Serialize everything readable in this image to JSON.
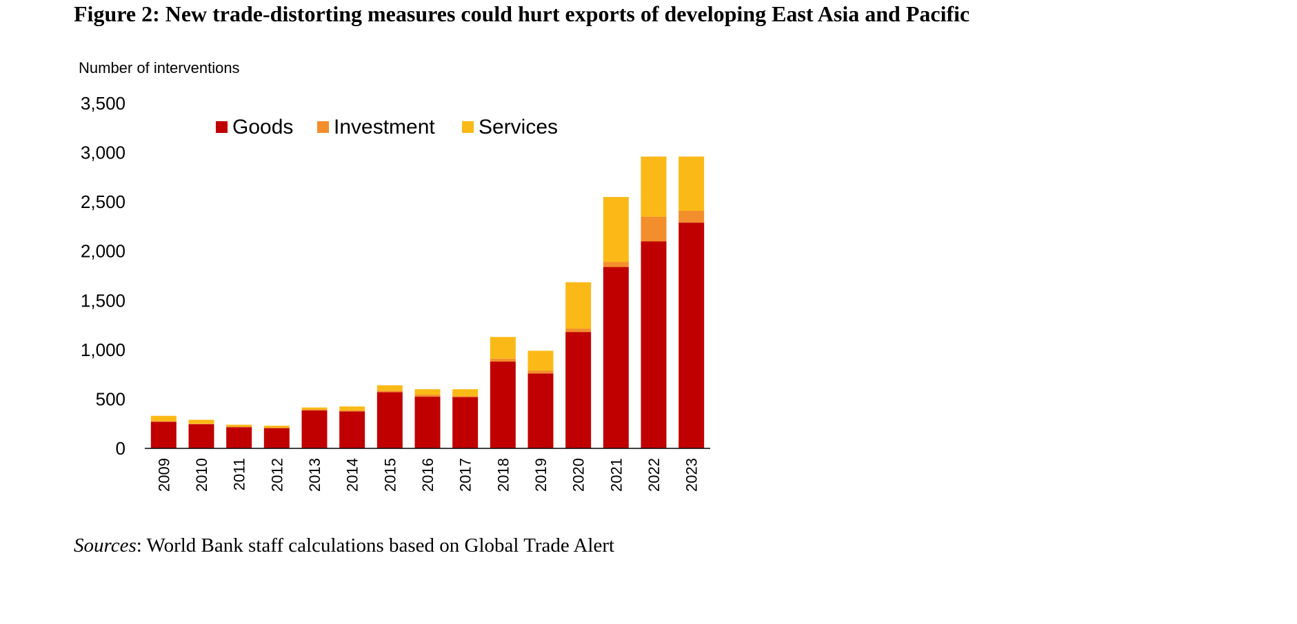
{
  "title": "Figure 2: New trade-distorting measures could hurt exports of developing East Asia and Pacific",
  "sources": {
    "label": "Sources",
    "text": ": World Bank staff calculations based on Global Trade Alert"
  },
  "chart_data": {
    "type": "bar",
    "stacked": true,
    "title": "",
    "xlabel": "",
    "ylabel": "Number of interventions",
    "ylim": [
      0,
      3500
    ],
    "yticks": [
      0,
      500,
      1000,
      1500,
      2000,
      2500,
      3000,
      3500
    ],
    "ytick_labels": [
      "0",
      "500",
      "1,000",
      "1,500",
      "2,000",
      "2,500",
      "3,000",
      "3,500"
    ],
    "categories": [
      "2009",
      "2010",
      "2011",
      "2012",
      "2013",
      "2014",
      "2015",
      "2016",
      "2017",
      "2018",
      "2019",
      "2020",
      "2021",
      "2022",
      "2023"
    ],
    "series": [
      {
        "name": "Goods",
        "color": "#C00000",
        "values": [
          270,
          245,
          215,
          205,
          385,
          375,
          570,
          525,
          520,
          880,
          760,
          1180,
          1840,
          2100,
          2290
        ]
      },
      {
        "name": "Investment",
        "color": "#F28E2B",
        "values": [
          5,
          5,
          5,
          5,
          10,
          10,
          15,
          20,
          10,
          30,
          30,
          35,
          50,
          250,
          120
        ]
      },
      {
        "name": "Services",
        "color": "#FBB917",
        "values": [
          55,
          40,
          20,
          20,
          20,
          40,
          55,
          55,
          70,
          220,
          200,
          470,
          660,
          610,
          550
        ]
      }
    ],
    "legend": {
      "position": "top"
    },
    "grid": false
  }
}
